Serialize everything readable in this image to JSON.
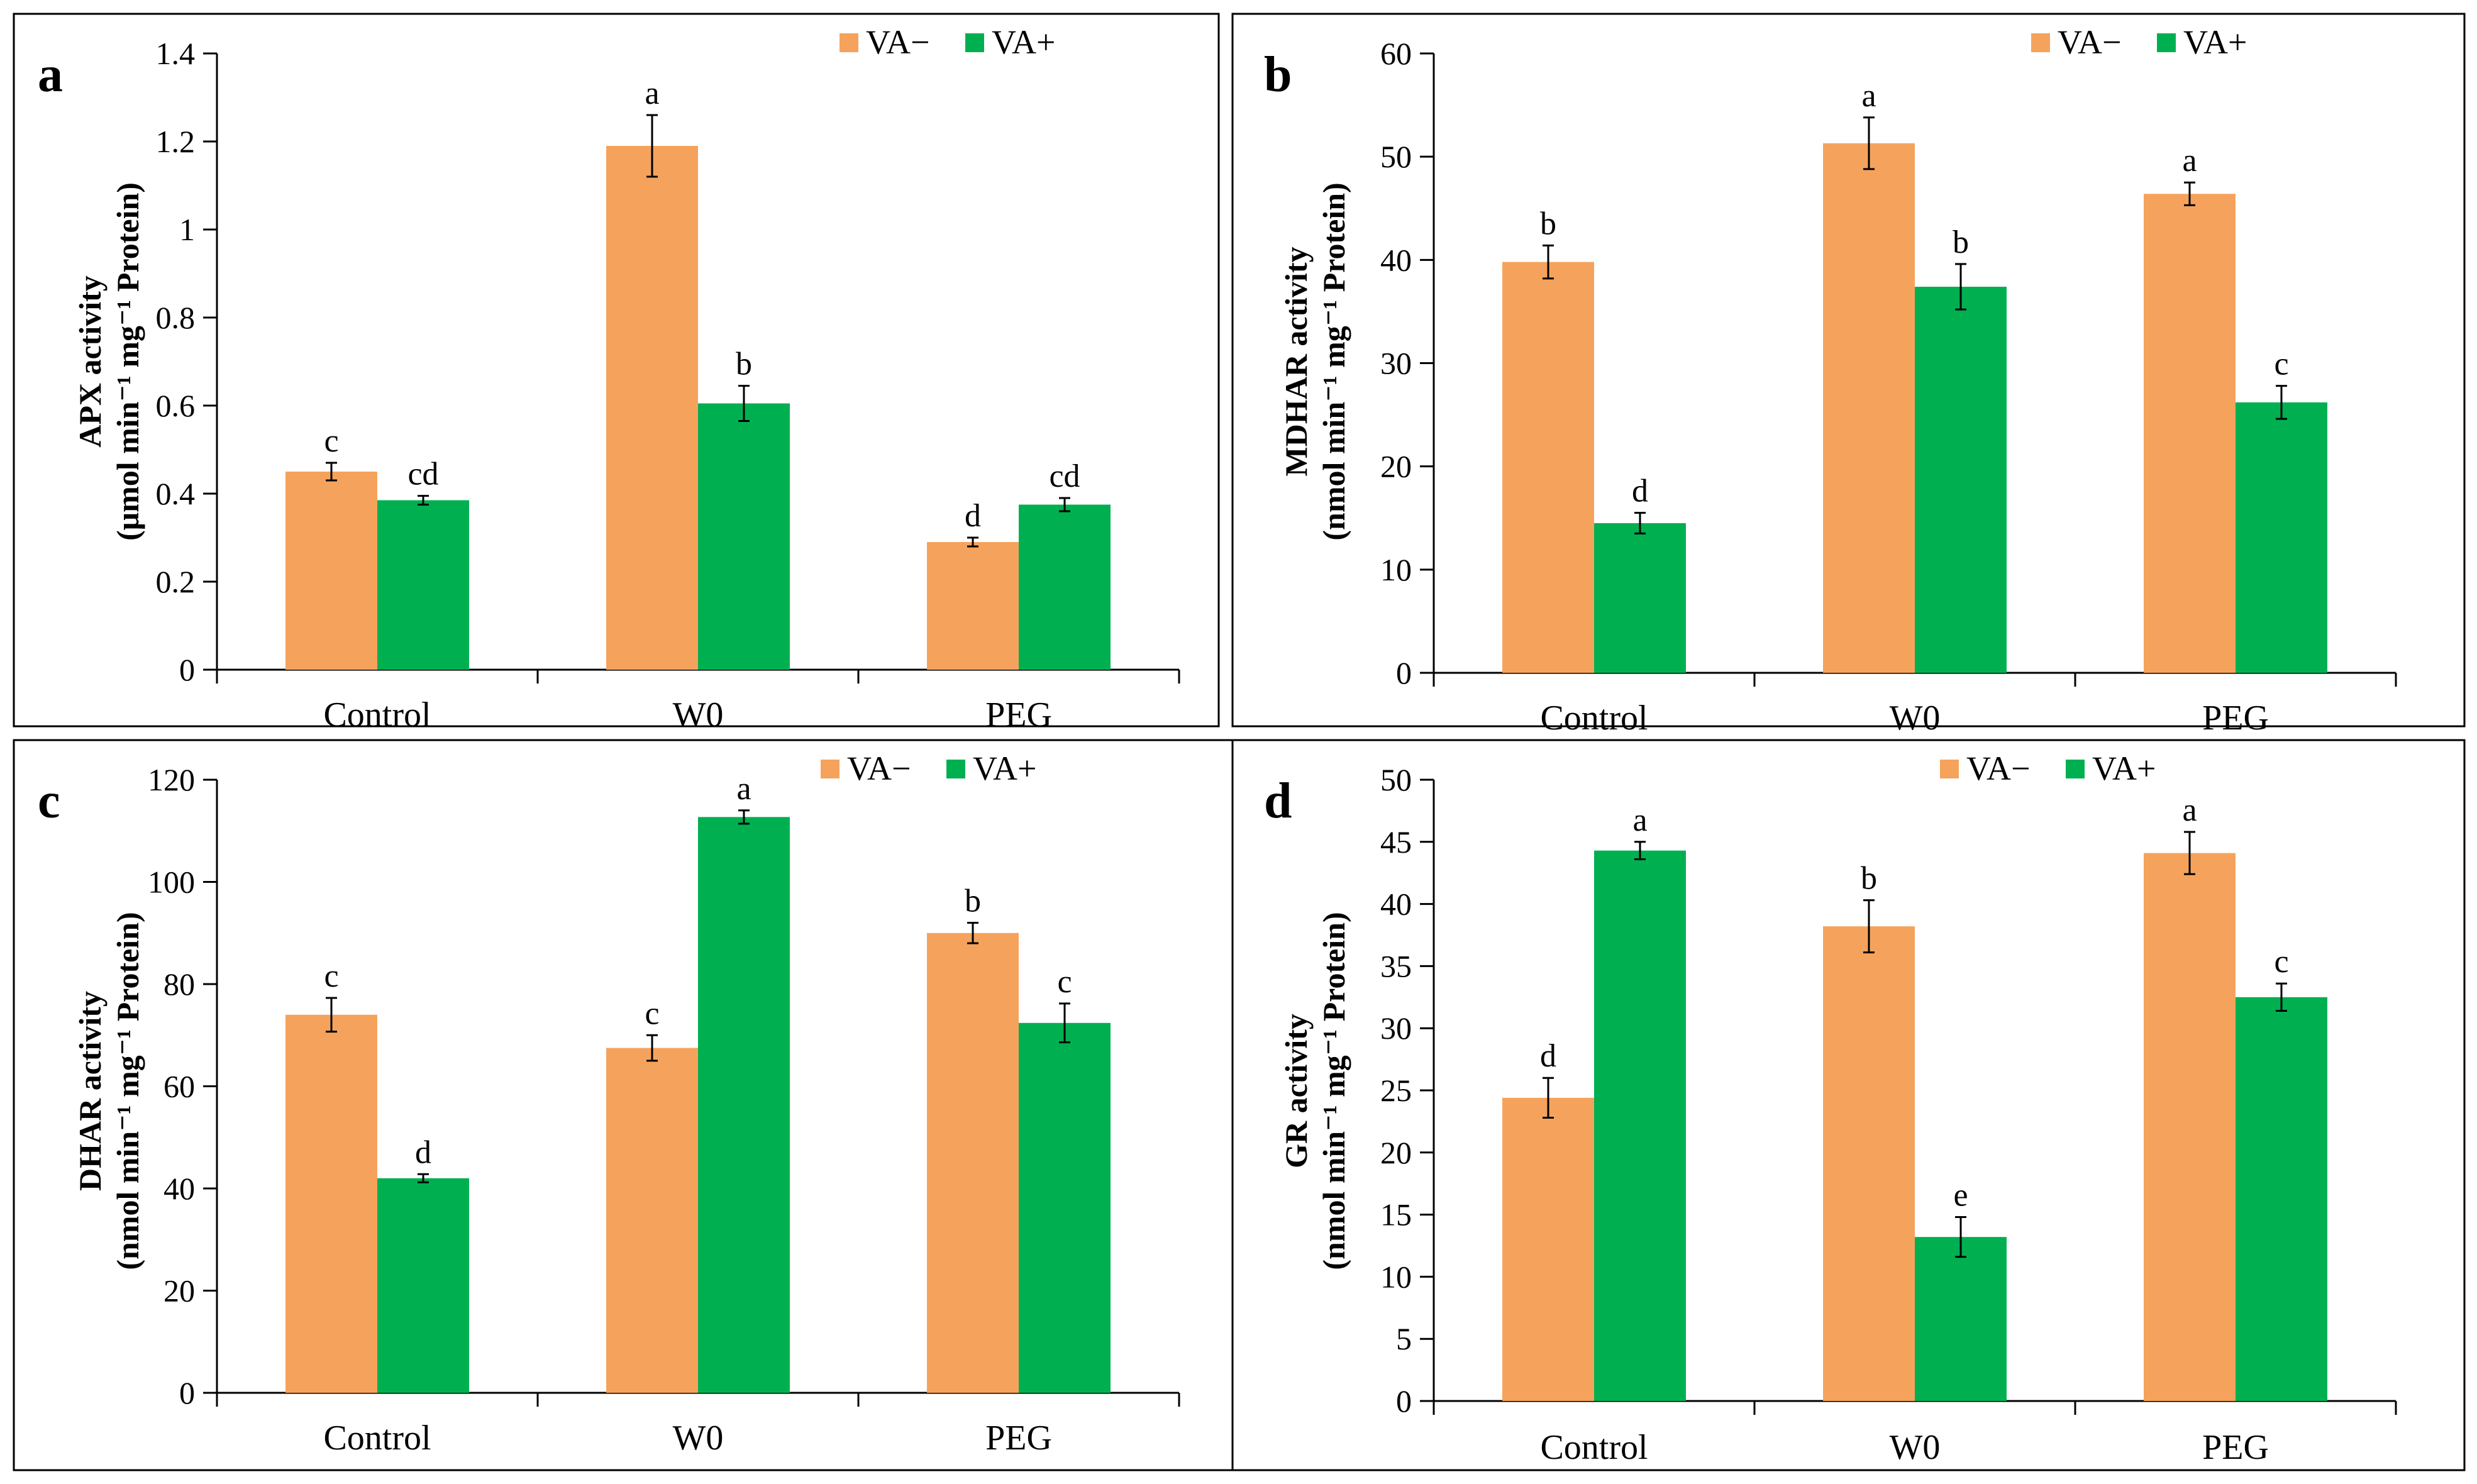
{
  "figure": {
    "colors": {
      "va_minus": "#F5A35C",
      "va_plus": "#00B050",
      "axis": "#000000",
      "frame": "#000000"
    },
    "legend": [
      "VA−",
      "VA+"
    ]
  },
  "chart_data": [
    {
      "type": "bar",
      "panel_label": "a",
      "title": "",
      "xlabel": "",
      "ylabel_line1": "APX activity",
      "ylabel_line2": "(μmol min⁻¹ mg⁻¹ Protein)",
      "categories": [
        "Control",
        "W0",
        "PEG"
      ],
      "ylim": [
        0,
        1.4
      ],
      "yticks": [
        0,
        0.2,
        0.4,
        0.6,
        0.8,
        1,
        1.2,
        1.4
      ],
      "yticklabels": [
        "0",
        "0.2",
        "0.4",
        "0.6",
        "0.8",
        "1",
        "1.2",
        "1.4"
      ],
      "legend_position": "top-right",
      "series": [
        {
          "name": "VA−",
          "values": [
            0.45,
            1.19,
            0.29
          ],
          "errors": [
            0.02,
            0.07,
            0.01
          ],
          "letters": [
            "c",
            "a",
            "d"
          ]
        },
        {
          "name": "VA+",
          "values": [
            0.385,
            0.605,
            0.375
          ],
          "errors": [
            0.01,
            0.04,
            0.015
          ],
          "letters": [
            "cd",
            "b",
            "cd"
          ]
        }
      ]
    },
    {
      "type": "bar",
      "panel_label": "b",
      "title": "",
      "xlabel": "",
      "ylabel_line1": "MDHAR activity",
      "ylabel_line2": "(nmol min⁻¹ mg⁻¹ Protein)",
      "categories": [
        "Control",
        "W0",
        "PEG"
      ],
      "ylim": [
        0,
        60
      ],
      "yticks": [
        0,
        10,
        20,
        30,
        40,
        50,
        60
      ],
      "yticklabels": [
        "0",
        "10",
        "20",
        "30",
        "40",
        "50",
        "60"
      ],
      "legend_position": "top-right",
      "series": [
        {
          "name": "VA−",
          "values": [
            39.8,
            51.3,
            46.4
          ],
          "errors": [
            1.6,
            2.5,
            1.1
          ],
          "letters": [
            "b",
            "a",
            "a"
          ]
        },
        {
          "name": "VA+",
          "values": [
            14.5,
            37.4,
            26.2
          ],
          "errors": [
            1.0,
            2.2,
            1.6
          ],
          "letters": [
            "d",
            "b",
            "c"
          ]
        }
      ]
    },
    {
      "type": "bar",
      "panel_label": "c",
      "title": "",
      "xlabel": "",
      "ylabel_line1": "DHAR activity",
      "ylabel_line2": "(nmol min⁻¹ mg⁻¹ Protein)",
      "categories": [
        "Control",
        "W0",
        "PEG"
      ],
      "ylim": [
        0,
        120
      ],
      "yticks": [
        0,
        20,
        40,
        60,
        80,
        100,
        120
      ],
      "yticklabels": [
        "0",
        "20",
        "40",
        "60",
        "80",
        "100",
        "120"
      ],
      "legend_position": "top-right",
      "series": [
        {
          "name": "VA−",
          "values": [
            74,
            67.5,
            90
          ],
          "errors": [
            3.3,
            2.5,
            2.0
          ],
          "letters": [
            "c",
            "c",
            "b"
          ]
        },
        {
          "name": "VA+",
          "values": [
            42,
            112.7,
            72.4
          ],
          "errors": [
            0.8,
            1.3,
            3.8
          ],
          "letters": [
            "d",
            "a",
            "c"
          ]
        }
      ]
    },
    {
      "type": "bar",
      "panel_label": "d",
      "title": "",
      "xlabel": "",
      "ylabel_line1": "GR activity",
      "ylabel_line2": "(nmol min⁻¹ mg⁻¹ Protein)",
      "categories": [
        "Control",
        "W0",
        "PEG"
      ],
      "ylim": [
        0,
        50
      ],
      "yticks": [
        0,
        5,
        10,
        15,
        20,
        25,
        30,
        35,
        40,
        45,
        50
      ],
      "yticklabels": [
        "0",
        "5",
        "10",
        "15",
        "20",
        "25",
        "30",
        "35",
        "40",
        "45",
        "50"
      ],
      "legend_position": "top-right",
      "series": [
        {
          "name": "VA−",
          "values": [
            24.4,
            38.2,
            44.1
          ],
          "errors": [
            1.6,
            2.1,
            1.7
          ],
          "letters": [
            "d",
            "b",
            "a"
          ]
        },
        {
          "name": "VA+",
          "values": [
            44.3,
            13.2,
            32.5
          ],
          "errors": [
            0.7,
            1.6,
            1.1
          ],
          "letters": [
            "a",
            "e",
            "c"
          ]
        }
      ]
    }
  ]
}
